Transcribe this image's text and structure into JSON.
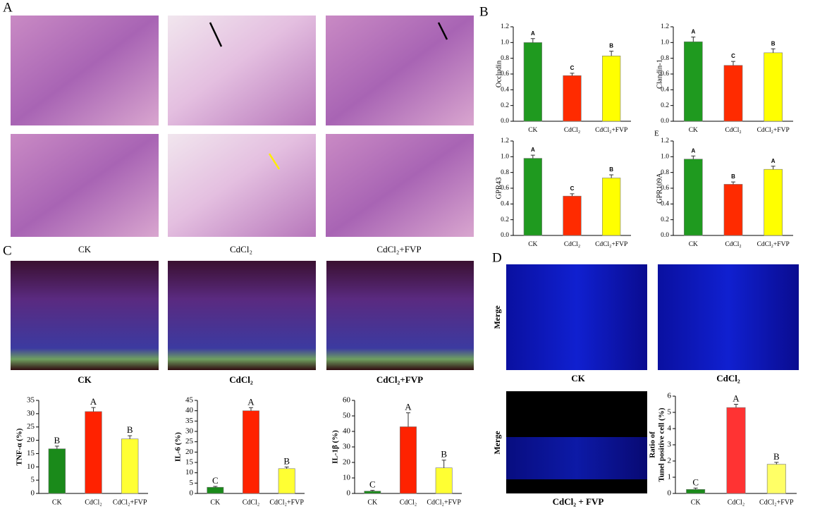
{
  "panel_labels": {
    "a": "A",
    "b": "B",
    "c": "C",
    "d": "D",
    "e": "E"
  },
  "a_captions": [
    "CK",
    "CdCl₂",
    "CdCl₂+FVP"
  ],
  "c_captions": [
    "CK",
    "CdCl₂",
    "CdCl₂+FVP"
  ],
  "d_captions": [
    "CK",
    "CdCl₂",
    "CdCl₂ + FVP"
  ],
  "d_side_labels": [
    "Merge",
    "Merge"
  ],
  "chart_data": [
    {
      "type": "bar",
      "ylabel": "Occludin",
      "categories": [
        "CK",
        "CdCl₂",
        "CdCl₂+FVP"
      ],
      "values": [
        1.0,
        0.58,
        0.83
      ],
      "errors": [
        0.05,
        0.03,
        0.06
      ],
      "letters": [
        "A",
        "C",
        "B"
      ],
      "colors": [
        "#1f9a1f",
        "#ff2b00",
        "#ffff00"
      ],
      "ylim": [
        0,
        1.2
      ],
      "yticks": [
        {
          "value": 0,
          "label": "0.0"
        },
        0.2,
        0.4,
        0.6,
        0.8,
        {
          "value": 1,
          "label": "1.0"
        },
        1.2
      ]
    },
    {
      "type": "bar",
      "ylabel": "Clandin-1",
      "categories": [
        "CK",
        "CdCl₂",
        "CdCl₂+FVP"
      ],
      "values": [
        1.01,
        0.71,
        0.87
      ],
      "errors": [
        0.06,
        0.05,
        0.05
      ],
      "letters": [
        "A",
        "C",
        "B"
      ],
      "colors": [
        "#1f9a1f",
        "#ff2b00",
        "#ffff00"
      ],
      "ylim": [
        0,
        1.2
      ],
      "yticks": [
        {
          "value": 0,
          "label": "0.0"
        },
        0.2,
        0.4,
        0.6,
        0.8,
        {
          "value": 1,
          "label": "1.0"
        },
        1.2
      ]
    },
    {
      "type": "bar",
      "ylabel": "GPR43",
      "categories": [
        "CK",
        "CdCl₂",
        "CdCl₂+FVP"
      ],
      "values": [
        0.98,
        0.5,
        0.73
      ],
      "errors": [
        0.04,
        0.03,
        0.04
      ],
      "letters": [
        "A",
        "C",
        "B"
      ],
      "colors": [
        "#1f9a1f",
        "#ff2b00",
        "#ffff00"
      ],
      "ylim": [
        0,
        1.2
      ],
      "yticks": [
        {
          "value": 0,
          "label": "0.0"
        },
        0.2,
        0.4,
        0.6,
        0.8,
        {
          "value": 1,
          "label": "1.0"
        },
        1.2
      ]
    },
    {
      "type": "bar",
      "ylabel": "GPR109A",
      "categories": [
        "CK",
        "CdCl₂",
        "CdCl₂+FVP"
      ],
      "values": [
        0.97,
        0.65,
        0.84
      ],
      "errors": [
        0.04,
        0.03,
        0.04
      ],
      "letters": [
        "A",
        "B",
        "A"
      ],
      "colors": [
        "#1f9a1f",
        "#ff2b00",
        "#ffff00"
      ],
      "ylim": [
        0,
        1.2
      ],
      "yticks": [
        {
          "value": 0,
          "label": "0.0"
        },
        0.2,
        0.4,
        0.6,
        0.8,
        {
          "value": 1,
          "label": "1.0"
        },
        1.2
      ]
    },
    {
      "type": "bar",
      "ylabel": "TNF-α (%)",
      "categories": [
        "CK",
        "CdCl₂",
        "CdCl₂+FVP"
      ],
      "values": [
        16.8,
        30.8,
        20.5
      ],
      "errors": [
        1.0,
        1.5,
        1.2
      ],
      "letters": [
        "B",
        "A",
        "B"
      ],
      "colors": [
        "#1a8a1a",
        "#ff2200",
        "#ffff33"
      ],
      "ylim": [
        0,
        35
      ],
      "yticks": [
        0,
        5,
        10,
        15,
        20,
        25,
        30,
        35
      ]
    },
    {
      "type": "bar",
      "ylabel": "IL-6 (%)",
      "categories": [
        "CK",
        "CdCl₂",
        "CdCl₂+FVP"
      ],
      "values": [
        3,
        40,
        12
      ],
      "errors": [
        0.4,
        1.5,
        0.8
      ],
      "letters": [
        "C",
        "A",
        "B"
      ],
      "colors": [
        "#1a8a1a",
        "#ff2200",
        "#ffff33"
      ],
      "ylim": [
        0,
        45
      ],
      "yticks": [
        0,
        5,
        10,
        15,
        20,
        25,
        30,
        35,
        40,
        45
      ]
    },
    {
      "type": "bar",
      "ylabel": "IL-1β (%)",
      "categories": [
        "CK",
        "CdCl₂",
        "CdCl₂+FVP"
      ],
      "values": [
        1.5,
        43,
        16.5
      ],
      "errors": [
        0.5,
        9,
        5
      ],
      "letters": [
        "C",
        "A",
        "B"
      ],
      "colors": [
        "#1a8a1a",
        "#ff2200",
        "#ffff33"
      ],
      "ylim": [
        0,
        60
      ],
      "yticks": [
        0,
        10,
        20,
        30,
        40,
        50,
        60
      ]
    },
    {
      "type": "bar",
      "ylabel": [
        "Ratio of",
        "Tunel positive cell (%)"
      ],
      "categories": [
        "CK",
        "CdCl₂",
        "CdCl₂+FVP"
      ],
      "values": [
        0.25,
        5.3,
        1.8
      ],
      "errors": [
        0.08,
        0.2,
        0.12
      ],
      "letters": [
        "C",
        "A",
        "B"
      ],
      "colors": [
        "#1a8a1a",
        "#ff3333",
        "#ffff66"
      ],
      "ylim": [
        0,
        6
      ],
      "yticks": [
        0,
        1,
        2,
        3,
        4,
        5,
        6
      ]
    }
  ]
}
